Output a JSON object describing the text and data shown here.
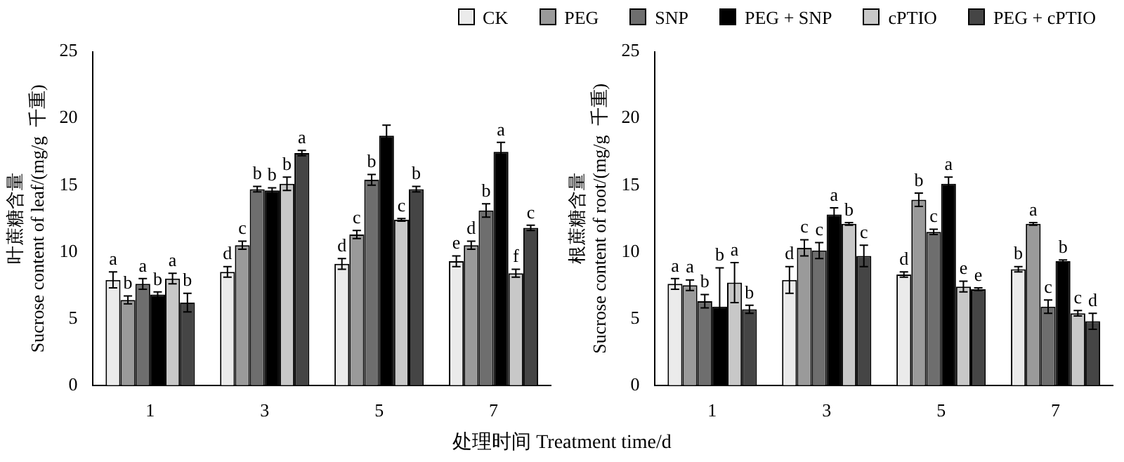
{
  "chart_data": [
    {
      "type": "bar",
      "ylabel": "叶蔗糖含量\nSucrose content of leaf/(mg/g  千重)",
      "xlabel": "处理时间 Treatment time/d",
      "categories": [
        "1",
        "3",
        "5",
        "7"
      ],
      "ylim": [
        0,
        25
      ],
      "yticks": [
        0,
        5,
        10,
        15,
        20,
        25
      ],
      "grid": false,
      "legend": "top",
      "series": [
        {
          "name": "CK",
          "color": "#ebebeb",
          "values": [
            7.9,
            8.5,
            9.1,
            9.3
          ],
          "errors": [
            0.6,
            0.4,
            0.4,
            0.4
          ],
          "value_labels": [
            "a",
            "d",
            "d",
            "e"
          ]
        },
        {
          "name": "PEG",
          "color": "#9a9a9a",
          "values": [
            6.4,
            10.5,
            11.3,
            10.5
          ],
          "errors": [
            0.3,
            0.3,
            0.3,
            0.3
          ],
          "value_labels": [
            "b",
            "c",
            "c",
            "d"
          ]
        },
        {
          "name": "SNP",
          "color": "#6e6e6e",
          "values": [
            7.6,
            14.7,
            15.4,
            13.1
          ],
          "errors": [
            0.4,
            0.2,
            0.4,
            0.5
          ],
          "value_labels": [
            "a",
            "b",
            "b",
            "b"
          ]
        },
        {
          "name": "PEG + SNP",
          "color": "#000000",
          "values": [
            6.8,
            14.6,
            18.7,
            17.5
          ],
          "errors": [
            0.2,
            0.2,
            0.8,
            0.7
          ],
          "value_labels": [
            "b",
            "b",
            null,
            "a"
          ]
        },
        {
          "name": "cPTIO",
          "color": "#c8c8c8",
          "values": [
            8.0,
            15.1,
            12.4,
            8.4
          ],
          "errors": [
            0.4,
            0.5,
            0.1,
            0.3
          ],
          "value_labels": [
            "a",
            "b",
            "c",
            "f"
          ]
        },
        {
          "name": "PEG + cPTIO",
          "color": "#454545",
          "values": [
            6.2,
            17.4,
            14.7,
            11.8
          ],
          "errors": [
            0.7,
            0.2,
            0.2,
            0.2
          ],
          "value_labels": [
            "b",
            "a",
            "b",
            "c"
          ]
        }
      ]
    },
    {
      "type": "bar",
      "ylabel": "根蔗糖含量\nSucrose content of root/(mg/g  千重)",
      "categories": [
        "1",
        "3",
        "5",
        "7"
      ],
      "ylim": [
        0,
        25
      ],
      "yticks": [
        0,
        5,
        10,
        15,
        20,
        25
      ],
      "grid": false,
      "series": [
        {
          "color": "#ebebeb",
          "values": [
            7.6,
            7.9,
            8.3,
            8.7
          ],
          "errors": [
            0.4,
            1.0,
            0.2,
            0.2
          ],
          "value_labels": [
            "a",
            "d",
            "d",
            "b"
          ]
        },
        {
          "color": "#9a9a9a",
          "values": [
            7.5,
            10.3,
            13.9,
            12.1
          ],
          "errors": [
            0.4,
            0.6,
            0.5,
            0.1
          ],
          "value_labels": [
            "a",
            "c",
            "b",
            "a"
          ]
        },
        {
          "color": "#6e6e6e",
          "values": [
            6.3,
            10.1,
            11.5,
            5.9
          ],
          "errors": [
            0.5,
            0.6,
            0.2,
            0.5
          ],
          "value_labels": [
            "b",
            "c",
            "c",
            "c"
          ]
        },
        {
          "color": "#000000",
          "values": [
            5.9,
            12.8,
            15.1,
            9.3
          ],
          "errors": [
            2.9,
            0.5,
            0.5,
            0.1
          ],
          "value_labels": [
            "b",
            "a",
            "a",
            "b"
          ]
        },
        {
          "color": "#c8c8c8",
          "values": [
            7.7,
            12.1,
            7.4,
            5.4
          ],
          "errors": [
            1.5,
            0.1,
            0.4,
            0.2
          ],
          "value_labels": [
            "a",
            "b",
            "e",
            "c"
          ]
        },
        {
          "color": "#454545",
          "values": [
            5.7,
            9.7,
            7.2,
            4.8
          ],
          "errors": [
            0.3,
            0.8,
            0.1,
            0.6
          ],
          "value_labels": [
            "b",
            "c",
            "e",
            "d"
          ]
        }
      ]
    }
  ]
}
